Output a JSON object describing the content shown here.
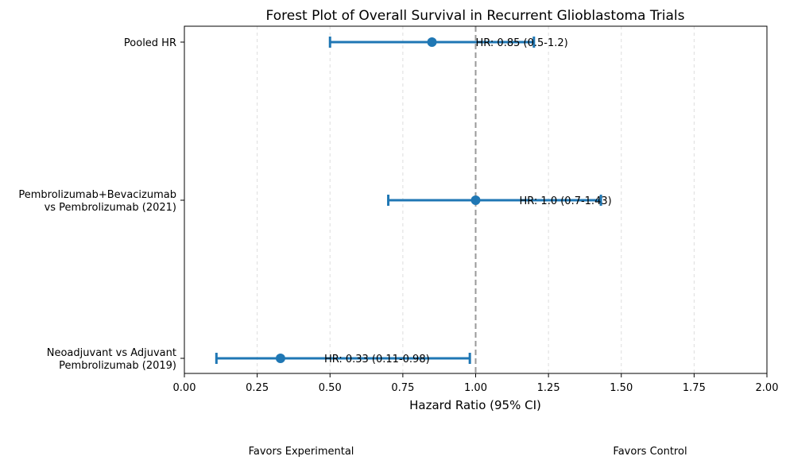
{
  "chart_data": {
    "type": "forest",
    "title": "Forest Plot of Overall Survival in Recurrent Glioblastoma Trials",
    "xlabel": "Hazard Ratio (95% CI)",
    "ylabel": "",
    "xlim": [
      0.0,
      2.0
    ],
    "x_ticks": [
      "0.00",
      "0.25",
      "0.50",
      "0.75",
      "1.00",
      "1.25",
      "1.50",
      "1.75",
      "2.00"
    ],
    "reference_line": 1.0,
    "grid": "vertical dashed",
    "colors": {
      "series": "#1f77b4",
      "reference": "#999999",
      "grid": "#dddddd"
    },
    "rows": [
      {
        "label_lines": [
          "Pooled HR"
        ],
        "hr": 0.85,
        "lower": 0.5,
        "upper": 1.2,
        "annotation": "HR: 0.85 (0.5-1.2)"
      },
      {
        "label_lines": [
          "Pembrolizumab+Bevacizumab",
          "vs Pembrolizumab (2021)"
        ],
        "hr": 1.0,
        "lower": 0.7,
        "upper": 1.43,
        "annotation": "HR: 1.0 (0.7-1.43)"
      },
      {
        "label_lines": [
          "Neoadjuvant vs Adjuvant",
          "Pembrolizumab (2019)"
        ],
        "hr": 0.33,
        "lower": 0.11,
        "upper": 0.98,
        "annotation": "HR: 0.33 (0.11-0.98)"
      }
    ],
    "footer_left": "Favors Experimental",
    "footer_right": "Favors Control"
  }
}
